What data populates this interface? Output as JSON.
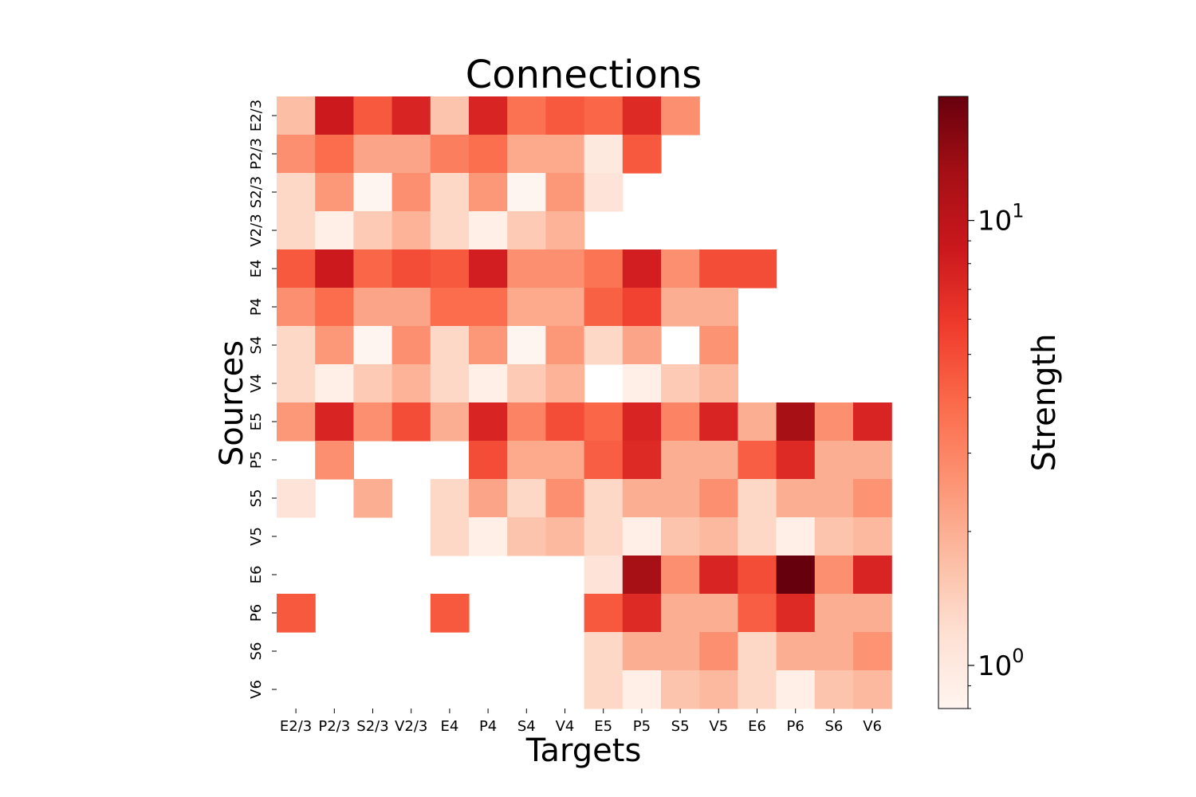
{
  "chart_data": {
    "type": "heatmap",
    "title": "Connections",
    "xlabel": "Targets",
    "ylabel": "Sources",
    "colorbar_label": "Strength",
    "x_categories": [
      "E2/3",
      "P2/3",
      "S2/3",
      "V2/3",
      "E4",
      "P4",
      "S4",
      "V4",
      "E5",
      "P5",
      "S5",
      "V5",
      "E6",
      "P6",
      "S6",
      "V6"
    ],
    "y_categories": [
      "E2/3",
      "P2/3",
      "S2/3",
      "V2/3",
      "E4",
      "P4",
      "S4",
      "V4",
      "E5",
      "P5",
      "S5",
      "V5",
      "E6",
      "P6",
      "S6",
      "V6"
    ],
    "colormap": "Reds",
    "color_scale": "log",
    "clim": [
      0.8,
      19
    ],
    "colorbar_ticks": [
      {
        "value": 1,
        "base": "10",
        "exp": "0"
      },
      {
        "value": 10,
        "base": "10",
        "exp": "1"
      }
    ],
    "colorbar_minor_ticks": [
      0.8,
      0.9,
      2,
      3,
      4,
      5,
      6,
      7,
      8,
      9
    ],
    "values": [
      [
        1.7,
        8.5,
        4.5,
        7.5,
        1.6,
        7.5,
        3.6,
        4.5,
        4.0,
        7.0,
        2.7,
        null,
        null,
        null,
        null,
        null
      ],
      [
        2.7,
        3.8,
        2.2,
        2.2,
        3.2,
        3.7,
        2.1,
        2.1,
        1.0,
        4.5,
        null,
        null,
        null,
        null,
        null,
        null
      ],
      [
        1.3,
        2.5,
        0.8,
        2.7,
        1.3,
        2.5,
        0.8,
        2.5,
        1.1,
        null,
        null,
        null,
        null,
        null,
        null,
        null
      ],
      [
        1.3,
        0.9,
        1.5,
        1.9,
        1.3,
        0.9,
        1.5,
        1.9,
        null,
        null,
        null,
        null,
        null,
        null,
        null,
        null
      ],
      [
        4.5,
        8.5,
        4.0,
        5.0,
        4.5,
        8.0,
        2.7,
        2.7,
        3.5,
        8.0,
        2.7,
        5.0,
        5.0,
        null,
        null,
        null
      ],
      [
        2.7,
        3.8,
        2.2,
        2.2,
        3.8,
        3.8,
        2.1,
        2.1,
        4.2,
        5.5,
        2.0,
        2.0,
        null,
        null,
        null,
        null
      ],
      [
        1.3,
        2.5,
        0.8,
        2.7,
        1.3,
        2.5,
        0.8,
        2.5,
        1.3,
        2.2,
        null,
        2.6,
        null,
        null,
        null,
        null
      ],
      [
        1.3,
        0.9,
        1.5,
        1.9,
        1.3,
        0.9,
        1.5,
        1.9,
        null,
        0.9,
        1.5,
        1.8,
        null,
        null,
        null,
        null
      ],
      [
        2.5,
        7.5,
        2.7,
        5.0,
        2.0,
        7.5,
        3.0,
        5.0,
        4.0,
        7.5,
        3.0,
        7.5,
        2.0,
        12.5,
        2.7,
        7.5
      ],
      [
        null,
        2.7,
        null,
        null,
        null,
        5.0,
        2.1,
        2.1,
        4.3,
        7.0,
        2.0,
        2.0,
        4.3,
        7.0,
        2.0,
        2.0
      ],
      [
        1.1,
        null,
        2.0,
        null,
        1.3,
        2.2,
        1.3,
        2.7,
        1.3,
        2.0,
        2.0,
        2.7,
        1.3,
        2.0,
        2.0,
        2.6
      ],
      [
        null,
        null,
        null,
        null,
        1.3,
        0.9,
        1.6,
        1.8,
        1.3,
        0.9,
        1.6,
        1.8,
        1.3,
        0.9,
        1.6,
        1.8
      ],
      [
        null,
        null,
        null,
        null,
        null,
        null,
        null,
        null,
        1.1,
        12.5,
        2.7,
        7.5,
        5.0,
        19.0,
        2.7,
        7.5
      ],
      [
        4.5,
        null,
        null,
        null,
        4.5,
        null,
        null,
        null,
        4.5,
        7.0,
        2.0,
        2.0,
        4.3,
        7.0,
        2.0,
        2.0
      ],
      [
        null,
        null,
        null,
        null,
        null,
        null,
        null,
        null,
        1.3,
        2.0,
        2.0,
        2.7,
        1.3,
        2.0,
        2.0,
        2.6
      ],
      [
        null,
        null,
        null,
        null,
        null,
        null,
        null,
        null,
        1.3,
        0.9,
        1.6,
        1.8,
        1.3,
        0.9,
        1.6,
        1.8
      ]
    ]
  }
}
